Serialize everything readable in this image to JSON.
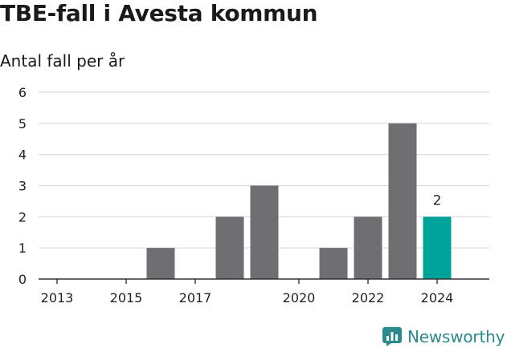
{
  "title": "TBE-fall i Avesta kommun",
  "subtitle": "Antal fall per år",
  "brand": {
    "name": "Newsworthy",
    "color": "#2a8a8c",
    "icon": "bar-chart-logo-icon"
  },
  "colors": {
    "bar": "#6f6e73",
    "highlight": "#00a39a",
    "grid": "#d9d9d9",
    "axis": "#333333"
  },
  "chart_data": {
    "type": "bar",
    "title": "TBE-fall i Avesta kommun",
    "subtitle": "Antal fall per år",
    "categories": [
      "2013",
      "2014",
      "2015",
      "2016",
      "2017",
      "2018",
      "2019",
      "2020",
      "2021",
      "2022",
      "2023",
      "2024"
    ],
    "x_tick_labels": [
      "2013",
      "2015",
      "2017",
      "2020",
      "2022",
      "2024"
    ],
    "values": [
      0,
      0,
      0,
      1,
      0,
      2,
      3,
      0,
      1,
      2,
      5,
      2
    ],
    "highlight_category": "2024",
    "data_labels": [
      {
        "category": "2024",
        "text": "2"
      }
    ],
    "ylim": [
      0,
      6
    ],
    "yticks": [
      0,
      1,
      2,
      3,
      4,
      5,
      6
    ],
    "grid": true,
    "legend": "none"
  }
}
